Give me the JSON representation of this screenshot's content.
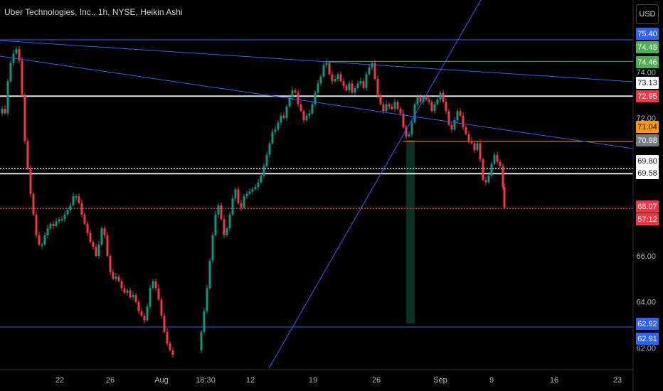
{
  "header": {
    "title": "Uber Technologies, Inc., 1h, NYSE, Heikin Ashi",
    "currency_button": "USD"
  },
  "colors": {
    "background": "#000000",
    "up": "#089981",
    "down": "#f23645",
    "trendline": "#2962ff",
    "green_level": "#4caf50",
    "orange_level": "#ff9800",
    "white_level": "#e0e3eb",
    "current_price_line": "#f23645"
  },
  "chart_data": {
    "type": "candlestick",
    "title": "Uber Technologies, Inc., 1h, NYSE, Heikin Ashi",
    "y_axis_ticks": [
      "74.00",
      "72.00",
      "66.00",
      "64.00",
      "62.00"
    ],
    "x_axis_ticks": [
      "22",
      "26",
      "Aug",
      "18:30",
      "12",
      "19",
      "26",
      "Sep",
      "9",
      "16",
      "23"
    ],
    "ylim": [
      61.7,
      76.5
    ],
    "price_labels": [
      {
        "value": "75.40",
        "kind": "trendline"
      },
      {
        "value": "74.48",
        "kind": "green"
      },
      {
        "value": "74.46",
        "kind": "green"
      },
      {
        "value": "73.13",
        "kind": "trendline-plain"
      },
      {
        "value": "72.95",
        "kind": "red"
      },
      {
        "value": "71.04",
        "kind": "orange"
      },
      {
        "value": "70.98",
        "kind": "gray"
      },
      {
        "value": "69.80",
        "kind": "plain"
      },
      {
        "value": "69.58",
        "kind": "plain"
      },
      {
        "value": "68.07",
        "kind": "red"
      },
      {
        "value": "57:12",
        "kind": "red"
      },
      {
        "value": "62.92",
        "kind": "trendline"
      },
      {
        "value": "62.91",
        "kind": "trendline"
      }
    ],
    "horizontal_levels": [
      {
        "price": 75.4,
        "color": "trendline",
        "style": "solid"
      },
      {
        "price": 74.46,
        "color": "green",
        "style": "solid"
      },
      {
        "price": 72.95,
        "color": "white",
        "style": "solid"
      },
      {
        "price": 70.98,
        "color": "orange",
        "style": "solid"
      },
      {
        "price": 69.8,
        "color": "white",
        "style": "dotted"
      },
      {
        "price": 69.58,
        "color": "white",
        "style": "solid"
      },
      {
        "price": 68.07,
        "color": "red",
        "style": "dotted"
      },
      {
        "price": 62.91,
        "color": "trendline",
        "style": "solid"
      }
    ],
    "price_path": [
      [
        0,
        72.2
      ],
      [
        4,
        72.4
      ],
      [
        8,
        72.2
      ],
      [
        12,
        73.6
      ],
      [
        16,
        74.4
      ],
      [
        20,
        74.8
      ],
      [
        24,
        75.0
      ],
      [
        28,
        74.5
      ],
      [
        32,
        73.0
      ],
      [
        36,
        71.0
      ],
      [
        40,
        69.8
      ],
      [
        44,
        68.7
      ],
      [
        48,
        67.8
      ],
      [
        52,
        66.9
      ],
      [
        56,
        66.5
      ],
      [
        60,
        66.5
      ],
      [
        64,
        66.9
      ],
      [
        68,
        67.2
      ],
      [
        72,
        67.4
      ],
      [
        76,
        67.3
      ],
      [
        80,
        67.5
      ],
      [
        84,
        67.6
      ],
      [
        88,
        67.6
      ],
      [
        92,
        67.8
      ],
      [
        96,
        68.0
      ],
      [
        100,
        68.2
      ],
      [
        104,
        68.6
      ],
      [
        108,
        68.6
      ],
      [
        112,
        68.3
      ],
      [
        116,
        67.8
      ],
      [
        120,
        67.4
      ],
      [
        124,
        67.0
      ],
      [
        128,
        66.6
      ],
      [
        132,
        66.4
      ],
      [
        136,
        66.0
      ],
      [
        140,
        66.5
      ],
      [
        144,
        67.2
      ],
      [
        148,
        66.9
      ],
      [
        152,
        66.0
      ],
      [
        156,
        65.3
      ],
      [
        160,
        65.0
      ],
      [
        164,
        65.1
      ],
      [
        168,
        64.9
      ],
      [
        172,
        64.6
      ],
      [
        176,
        64.4
      ],
      [
        180,
        64.5
      ],
      [
        184,
        64.2
      ],
      [
        188,
        64.3
      ],
      [
        192,
        64.0
      ],
      [
        196,
        63.6
      ],
      [
        200,
        63.4
      ],
      [
        204,
        63.2
      ],
      [
        208,
        63.8
      ],
      [
        212,
        64.6
      ],
      [
        216,
        64.9
      ],
      [
        220,
        64.6
      ],
      [
        224,
        64.1
      ],
      [
        228,
        63.4
      ],
      [
        232,
        62.7
      ],
      [
        236,
        62.2
      ],
      [
        240,
        61.9
      ],
      [
        244,
        61.7
      ],
      [
        280,
        61.9
      ],
      [
        284,
        62.7
      ],
      [
        288,
        63.6
      ],
      [
        292,
        64.6
      ],
      [
        296,
        65.8
      ],
      [
        300,
        66.9
      ],
      [
        304,
        67.8
      ],
      [
        308,
        68.2
      ],
      [
        312,
        67.6
      ],
      [
        316,
        66.9
      ],
      [
        320,
        67.2
      ],
      [
        324,
        67.8
      ],
      [
        328,
        68.5
      ],
      [
        332,
        68.9
      ],
      [
        336,
        68.3
      ],
      [
        340,
        68.1
      ],
      [
        344,
        68.6
      ],
      [
        348,
        68.7
      ],
      [
        352,
        68.8
      ],
      [
        356,
        68.9
      ],
      [
        360,
        69.0
      ],
      [
        364,
        69.2
      ],
      [
        368,
        69.5
      ],
      [
        372,
        69.9
      ],
      [
        376,
        70.4
      ],
      [
        380,
        70.9
      ],
      [
        384,
        71.4
      ],
      [
        388,
        71.5
      ],
      [
        392,
        71.8
      ],
      [
        396,
        72.1
      ],
      [
        400,
        72.0
      ],
      [
        404,
        72.5
      ],
      [
        408,
        72.9
      ],
      [
        412,
        73.2
      ],
      [
        416,
        73.1
      ],
      [
        420,
        72.6
      ],
      [
        424,
        72.3
      ],
      [
        428,
        71.9
      ],
      [
        432,
        72.1
      ],
      [
        436,
        72.2
      ],
      [
        440,
        72.6
      ],
      [
        444,
        73.1
      ],
      [
        448,
        73.5
      ],
      [
        452,
        73.8
      ],
      [
        456,
        74.3
      ],
      [
        460,
        74.4
      ],
      [
        464,
        73.9
      ],
      [
        468,
        73.6
      ],
      [
        472,
        73.7
      ],
      [
        476,
        73.9
      ],
      [
        480,
        73.6
      ],
      [
        484,
        73.4
      ],
      [
        488,
        73.2
      ],
      [
        492,
        73.5
      ],
      [
        496,
        73.1
      ],
      [
        500,
        73.3
      ],
      [
        504,
        73.5
      ],
      [
        508,
        73.6
      ],
      [
        512,
        73.3
      ],
      [
        516,
        73.9
      ],
      [
        520,
        74.2
      ],
      [
        524,
        74.4
      ],
      [
        528,
        73.7
      ],
      [
        532,
        73.0
      ],
      [
        536,
        72.6
      ],
      [
        540,
        72.3
      ],
      [
        544,
        72.6
      ],
      [
        548,
        72.5
      ],
      [
        552,
        72.4
      ],
      [
        556,
        72.7
      ],
      [
        560,
        72.4
      ],
      [
        564,
        72.2
      ],
      [
        568,
        71.6
      ],
      [
        572,
        71.2
      ],
      [
        576,
        71.3
      ],
      [
        580,
        71.8
      ],
      [
        584,
        72.6
      ],
      [
        588,
        72.9
      ],
      [
        592,
        72.7
      ],
      [
        596,
        72.9
      ],
      [
        600,
        72.8
      ],
      [
        604,
        72.7
      ],
      [
        608,
        72.3
      ],
      [
        612,
        72.6
      ],
      [
        616,
        72.8
      ],
      [
        620,
        73.1
      ],
      [
        624,
        72.7
      ],
      [
        628,
        72.3
      ],
      [
        632,
        71.7
      ],
      [
        636,
        71.5
      ],
      [
        640,
        71.9
      ],
      [
        644,
        72.3
      ],
      [
        648,
        72.1
      ],
      [
        652,
        71.6
      ],
      [
        656,
        71.3
      ],
      [
        660,
        71.0
      ],
      [
        664,
        70.9
      ],
      [
        668,
        70.6
      ],
      [
        672,
        70.9
      ],
      [
        676,
        70.2
      ],
      [
        680,
        69.3
      ],
      [
        684,
        69.2
      ],
      [
        688,
        69.5
      ],
      [
        692,
        70.0
      ],
      [
        696,
        70.4
      ],
      [
        700,
        70.1
      ],
      [
        704,
        69.9
      ],
      [
        708,
        69.0
      ],
      [
        710,
        68.1
      ]
    ]
  }
}
